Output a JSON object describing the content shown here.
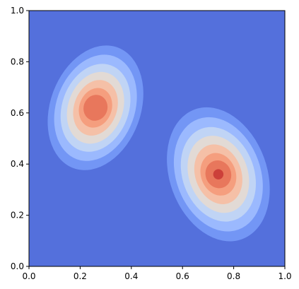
{
  "chart_data": {
    "type": "contourf",
    "title": "",
    "xlabel": "",
    "ylabel": "",
    "xlim": [
      0,
      1
    ],
    "ylim": [
      0,
      1
    ],
    "grid": false,
    "legend": "none",
    "colormap": "coolwarm",
    "x_ticks": [
      0.0,
      0.2,
      0.4,
      0.6,
      0.8,
      1.0
    ],
    "y_ticks": [
      0.0,
      0.2,
      0.4,
      0.6,
      0.8,
      1.0
    ],
    "x_tick_labels": [
      "0.0",
      "0.2",
      "0.4",
      "0.6",
      "0.8",
      "1.0"
    ],
    "y_tick_labels": [
      "0.0",
      "0.2",
      "0.4",
      "0.6",
      "0.8",
      "1.0"
    ],
    "peaks": [
      {
        "center": [
          0.26,
          0.62
        ],
        "relative_height": 0.82
      },
      {
        "center": [
          0.74,
          0.36
        ],
        "relative_height": 1.0
      }
    ],
    "level_colors": [
      "#5470dc",
      "#7396f5",
      "#9bb9fe",
      "#c0d4f5",
      "#e2dad5",
      "#f5c0a7",
      "#f59e7e",
      "#e8775c",
      "#cc403a"
    ]
  }
}
